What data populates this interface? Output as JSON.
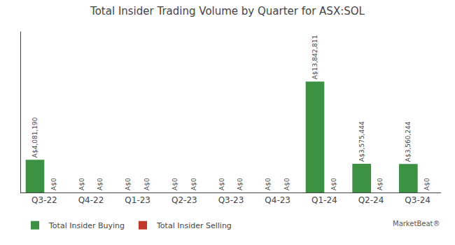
{
  "chart_data": {
    "type": "bar",
    "title": "Total Insider Trading Volume by Quarter for ASX:SOL",
    "categories": [
      "Q3-22",
      "Q4-22",
      "Q1-23",
      "Q2-23",
      "Q3-23",
      "Q4-23",
      "Q1-24",
      "Q2-24",
      "Q3-24"
    ],
    "series": [
      {
        "name": "Total Insider Buying",
        "color": "#3d9142",
        "values": [
          4081190,
          0,
          0,
          0,
          0,
          0,
          13842811,
          3575444,
          3560244
        ],
        "value_labels": [
          "A$4,081,190",
          "A$0",
          "A$0",
          "A$0",
          "A$0",
          "A$0",
          "A$13,842,811",
          "A$3,575,444",
          "A$3,560,244"
        ]
      },
      {
        "name": "Total Insider Selling",
        "color": "#c0392b",
        "values": [
          0,
          0,
          0,
          0,
          0,
          0,
          0,
          0,
          0
        ],
        "value_labels": [
          "A$0",
          "A$0",
          "A$0",
          "A$0",
          "A$0",
          "A$0",
          "A$0",
          "A$0",
          "A$0"
        ]
      }
    ],
    "ylim": [
      0,
      20072075.95
    ],
    "tick_labels": "x",
    "data_labels": true,
    "grid": false,
    "legend": "bottom",
    "annotations": [
      "MarketBeat®"
    ]
  }
}
